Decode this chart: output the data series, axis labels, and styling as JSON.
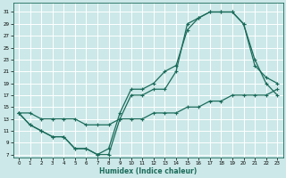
{
  "xlabel": "Humidex (Indice chaleur)",
  "bg_color": "#cce8e8",
  "grid_color": "#ffffff",
  "line_color": "#1a6b5a",
  "xlim": [
    -0.5,
    23.5
  ],
  "ylim": [
    6.5,
    32.5
  ],
  "xticks": [
    0,
    1,
    2,
    3,
    4,
    5,
    6,
    7,
    8,
    9,
    10,
    11,
    12,
    13,
    14,
    15,
    16,
    17,
    18,
    19,
    20,
    21,
    22,
    23
  ],
  "yticks": [
    7,
    9,
    11,
    13,
    15,
    17,
    19,
    21,
    23,
    25,
    27,
    29,
    31
  ],
  "line1_x": [
    0,
    1,
    2,
    3,
    4,
    5,
    6,
    7,
    8,
    9,
    10,
    11,
    12,
    13,
    14,
    15,
    16,
    17,
    18,
    19,
    20,
    21,
    22,
    23
  ],
  "line1_y": [
    14,
    12,
    11,
    10,
    10,
    8,
    8,
    7,
    7,
    13,
    17,
    17,
    18,
    18,
    21,
    29,
    30,
    31,
    31,
    31,
    29,
    23,
    19,
    17
  ],
  "line2_x": [
    0,
    1,
    2,
    3,
    4,
    5,
    6,
    7,
    8,
    9,
    10,
    11,
    12,
    13,
    14,
    15,
    16,
    17,
    18,
    19,
    20,
    21,
    22,
    23
  ],
  "line2_y": [
    14,
    12,
    11,
    10,
    10,
    8,
    8,
    7,
    8,
    14,
    18,
    18,
    19,
    21,
    22,
    28,
    30,
    31,
    31,
    31,
    29,
    22,
    20,
    19
  ],
  "line3_x": [
    0,
    1,
    2,
    3,
    4,
    5,
    6,
    7,
    8,
    9,
    10,
    11,
    12,
    13,
    14,
    15,
    16,
    17,
    18,
    19,
    20,
    21,
    22,
    23
  ],
  "line3_y": [
    14,
    14,
    13,
    13,
    13,
    13,
    12,
    12,
    12,
    13,
    13,
    13,
    14,
    14,
    14,
    15,
    15,
    16,
    16,
    17,
    17,
    17,
    17,
    18
  ]
}
